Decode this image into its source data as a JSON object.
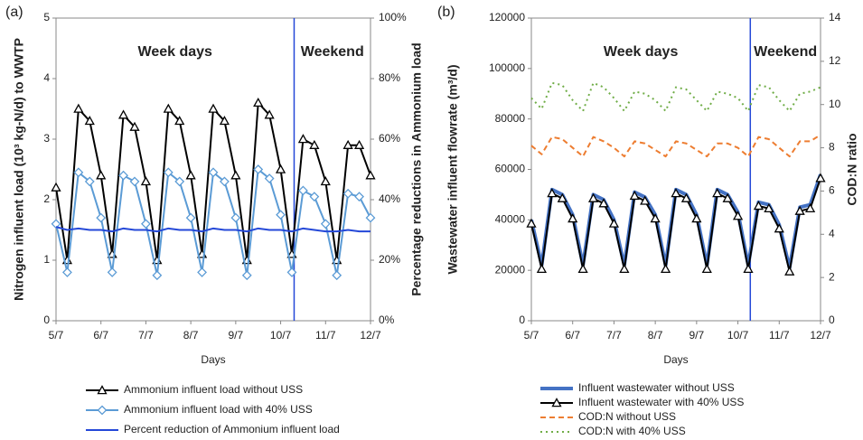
{
  "chart_data": [
    {
      "type": "line",
      "panel_label": "(a)",
      "x_label": "Days",
      "y_label": "Nitrogen influent load (10³ kg-N/d) to WWTP",
      "y2_label": "Percentage reductions in Ammonium load",
      "annotations": [
        "Week days",
        "Weekend"
      ],
      "vline": 10.3,
      "x": [
        5,
        5.25,
        5.5,
        5.75,
        6,
        6.25,
        6.5,
        6.75,
        7,
        7.25,
        7.5,
        7.75,
        8,
        8.25,
        8.5,
        8.75,
        9,
        9.25,
        9.5,
        9.75,
        10,
        10.25,
        10.5,
        10.75,
        11,
        11.25,
        11.5,
        11.75,
        12
      ],
      "xlim": [
        5,
        12
      ],
      "xticks": [
        {
          "value": 5,
          "label": "5/7"
        },
        {
          "value": 6,
          "label": "6/7"
        },
        {
          "value": 7,
          "label": "7/7"
        },
        {
          "value": 8,
          "label": "8/7"
        },
        {
          "value": 9,
          "label": "9/7"
        },
        {
          "value": 10,
          "label": "10/7"
        },
        {
          "value": 11,
          "label": "11/7"
        },
        {
          "value": 12,
          "label": "12/7"
        }
      ],
      "ylim": [
        0,
        5
      ],
      "yticks": [
        0,
        1,
        2,
        3,
        4,
        5
      ],
      "y2lim": [
        0,
        100
      ],
      "y2ticks": [
        {
          "value": 0,
          "label": "0%"
        },
        {
          "value": 20,
          "label": "20%"
        },
        {
          "value": 40,
          "label": "40%"
        },
        {
          "value": 60,
          "label": "60%"
        },
        {
          "value": 80,
          "label": "80%"
        },
        {
          "value": 100,
          "label": "100%"
        }
      ],
      "series": [
        {
          "name": "Ammonium influent load without USS",
          "color": "#000000",
          "marker": "triangle",
          "values": [
            2.2,
            1.0,
            3.5,
            3.3,
            2.4,
            1.1,
            3.4,
            3.2,
            2.3,
            1.0,
            3.5,
            3.3,
            2.4,
            1.1,
            3.5,
            3.3,
            2.4,
            1.0,
            3.6,
            3.4,
            2.5,
            1.1,
            3.0,
            2.9,
            2.3,
            1.0,
            2.9,
            2.9,
            2.4
          ]
        },
        {
          "name": "Ammonium influent load with 40% USS",
          "color": "#5b9bd5",
          "marker": "diamond",
          "values": [
            1.6,
            0.8,
            2.45,
            2.3,
            1.7,
            0.8,
            2.4,
            2.3,
            1.6,
            0.75,
            2.45,
            2.3,
            1.7,
            0.8,
            2.45,
            2.3,
            1.7,
            0.75,
            2.5,
            2.35,
            1.75,
            0.8,
            2.15,
            2.05,
            1.6,
            0.75,
            2.1,
            2.05,
            1.7
          ]
        },
        {
          "name": "Percent reduction of Ammonium influent load",
          "color": "#2448d8",
          "axis": "y2",
          "values": [
            31,
            30,
            30.5,
            30,
            30,
            29.5,
            30.5,
            30,
            30,
            29.5,
            30.5,
            30,
            30,
            29.5,
            30.5,
            30,
            30,
            29.5,
            30.5,
            30,
            30,
            29.5,
            30.5,
            30,
            29.5,
            29.5,
            30,
            29.5,
            29.5
          ]
        }
      ]
    },
    {
      "type": "line",
      "panel_label": "(b)",
      "x_label": "Days",
      "y_label": "Wastewater influent flowrate (m³/d)",
      "y2_label": "COD:N ratio",
      "annotations": [
        "Week days",
        "Weekend"
      ],
      "vline": 10.3,
      "x": [
        5,
        5.25,
        5.5,
        5.75,
        6,
        6.25,
        6.5,
        6.75,
        7,
        7.25,
        7.5,
        7.75,
        8,
        8.25,
        8.5,
        8.75,
        9,
        9.25,
        9.5,
        9.75,
        10,
        10.25,
        10.5,
        10.75,
        11,
        11.25,
        11.5,
        11.75,
        12
      ],
      "xlim": [
        5,
        12
      ],
      "xticks": [
        {
          "value": 5,
          "label": "5/7"
        },
        {
          "value": 6,
          "label": "6/7"
        },
        {
          "value": 7,
          "label": "7/7"
        },
        {
          "value": 8,
          "label": "8/7"
        },
        {
          "value": 9,
          "label": "9/7"
        },
        {
          "value": 10,
          "label": "10/7"
        },
        {
          "value": 11,
          "label": "11/7"
        },
        {
          "value": 12,
          "label": "12/7"
        }
      ],
      "ylim": [
        0,
        120000
      ],
      "yticks": [
        0,
        20000,
        40000,
        60000,
        80000,
        100000,
        120000
      ],
      "y2lim": [
        0,
        14
      ],
      "y2ticks": [
        0,
        2,
        4,
        6,
        8,
        10,
        12,
        14
      ],
      "series": [
        {
          "name": "Influent wastewater without USS",
          "color": "#4472c4",
          "width": 4,
          "values": [
            40000,
            22000,
            52000,
            50000,
            42000,
            22000,
            50000,
            48000,
            40000,
            22000,
            51000,
            49000,
            42000,
            22000,
            52000,
            50000,
            42000,
            22000,
            52000,
            50000,
            43000,
            22000,
            47000,
            46000,
            38000,
            21000,
            45000,
            46000,
            58000
          ]
        },
        {
          "name": "Influent wastewater with 40% USS",
          "color": "#000000",
          "marker": "triangle",
          "values": [
            38500,
            20500,
            50500,
            48500,
            40500,
            20500,
            48500,
            46500,
            38500,
            20500,
            49500,
            47500,
            40500,
            20500,
            50500,
            48500,
            40500,
            20500,
            50500,
            48500,
            41500,
            20500,
            45500,
            44500,
            36500,
            19500,
            43500,
            44500,
            56500
          ]
        },
        {
          "name": "COD:N without USS",
          "color": "#ed7d31",
          "dash": "6 4",
          "axis": "y2",
          "values": [
            8.1,
            7.7,
            8.5,
            8.4,
            8.0,
            7.6,
            8.5,
            8.3,
            8.0,
            7.6,
            8.3,
            8.2,
            7.9,
            7.6,
            8.3,
            8.2,
            7.9,
            7.6,
            8.2,
            8.2,
            8.0,
            7.6,
            8.5,
            8.4,
            8.0,
            7.6,
            8.3,
            8.3,
            8.6
          ]
        },
        {
          "name": "COD:N with 40% USS",
          "color": "#70ad47",
          "dash": "2 4",
          "axis": "y2",
          "values": [
            10.3,
            9.8,
            11.0,
            10.9,
            10.2,
            9.7,
            11.0,
            10.8,
            10.3,
            9.7,
            10.6,
            10.5,
            10.2,
            9.7,
            10.8,
            10.7,
            10.2,
            9.7,
            10.6,
            10.5,
            10.3,
            9.7,
            10.9,
            10.8,
            10.2,
            9.7,
            10.5,
            10.6,
            10.8
          ]
        }
      ]
    }
  ]
}
